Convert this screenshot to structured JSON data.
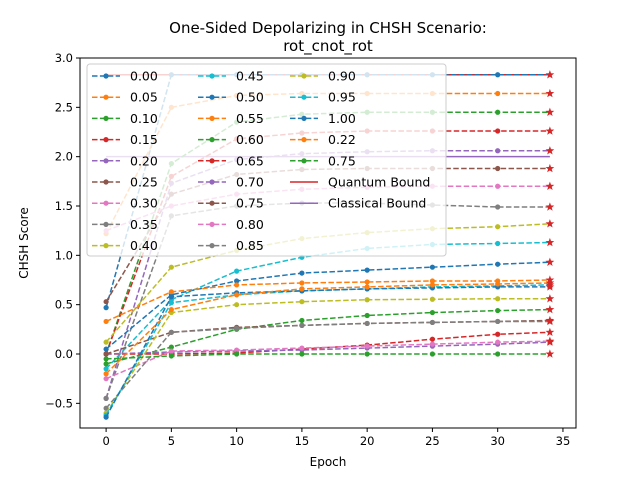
{
  "chart_data": {
    "type": "line",
    "title": "One-Sided Depolarizing in CHSH Scenario:",
    "subtitle": "rot_cnot_rot",
    "xlabel": "Epoch",
    "ylabel": "CHSH Score",
    "xlim": [
      -2,
      36
    ],
    "ylim": [
      -0.75,
      3.0
    ],
    "x_ticks": [
      0,
      5,
      10,
      15,
      20,
      25,
      30,
      35
    ],
    "y_ticks": [
      -0.5,
      0.0,
      0.5,
      1.0,
      1.5,
      2.0,
      2.5,
      3.0
    ],
    "x_tick_labels": [
      "0",
      "5",
      "10",
      "15",
      "20",
      "25",
      "30",
      "35"
    ],
    "y_tick_labels": [
      "−0.5",
      "0.0",
      "0.5",
      "1.0",
      "1.5",
      "2.0",
      "2.5",
      "3.0"
    ],
    "grid": false,
    "legend_placement": "top-left",
    "x": [
      0,
      5,
      10,
      15,
      20,
      25,
      30,
      34
    ],
    "series": [
      {
        "name": "0.00",
        "color": "#1f77b4",
        "values": [
          0.47,
          2.83,
          2.83,
          2.83,
          2.83,
          2.83,
          2.83,
          2.83
        ]
      },
      {
        "name": "0.05",
        "color": "#ff7f0e",
        "values": [
          1.22,
          2.5,
          2.62,
          2.64,
          2.64,
          2.64,
          2.64,
          2.64
        ]
      },
      {
        "name": "0.10",
        "color": "#2ca02c",
        "values": [
          0.0,
          1.93,
          2.35,
          2.43,
          2.45,
          2.45,
          2.45,
          2.45
        ]
      },
      {
        "name": "0.15",
        "color": "#d62728",
        "values": [
          0.0,
          1.8,
          2.18,
          2.24,
          2.26,
          2.26,
          2.26,
          2.26
        ]
      },
      {
        "name": "0.20",
        "color": "#9467bd",
        "values": [
          -0.45,
          1.73,
          1.97,
          2.03,
          2.05,
          2.06,
          2.06,
          2.06
        ]
      },
      {
        "name": "0.25",
        "color": "#8c564b",
        "values": [
          0.53,
          1.62,
          1.82,
          1.87,
          1.88,
          1.88,
          1.88,
          1.88
        ]
      },
      {
        "name": "0.30",
        "color": "#e377c2",
        "values": [
          1.25,
          1.5,
          1.62,
          1.67,
          1.69,
          1.7,
          1.7,
          1.7
        ]
      },
      {
        "name": "0.35",
        "color": "#7f7f7f",
        "values": [
          -0.45,
          1.4,
          1.5,
          1.53,
          1.53,
          1.51,
          1.49,
          1.49
        ]
      },
      {
        "name": "0.40",
        "color": "#bcbd22",
        "values": [
          0.12,
          0.88,
          1.05,
          1.17,
          1.23,
          1.27,
          1.29,
          1.32
        ]
      },
      {
        "name": "0.45",
        "color": "#17becf",
        "values": [
          -0.15,
          0.55,
          0.84,
          0.98,
          1.07,
          1.11,
          1.12,
          1.13
        ]
      },
      {
        "name": "0.50",
        "color": "#1f77b4",
        "values": [
          0.05,
          0.6,
          0.74,
          0.82,
          0.85,
          0.88,
          0.91,
          0.93
        ]
      },
      {
        "name": "0.55",
        "color": "#ff7f0e",
        "values": [
          0.33,
          0.63,
          0.7,
          0.72,
          0.73,
          0.74,
          0.74,
          0.75
        ]
      },
      {
        "name": "0.60",
        "color": "#2ca02c",
        "values": [
          -0.1,
          0.07,
          0.25,
          0.34,
          0.39,
          0.42,
          0.44,
          0.45
        ]
      },
      {
        "name": "0.65",
        "color": "#d62728",
        "values": [
          0.0,
          0.0,
          0.01,
          0.05,
          0.09,
          0.15,
          0.2,
          0.22
        ]
      },
      {
        "name": "0.70",
        "color": "#9467bd",
        "values": [
          0.0,
          0.02,
          0.03,
          0.04,
          0.06,
          0.08,
          0.1,
          0.12
        ]
      },
      {
        "name": "0.75",
        "color": "#8c564b",
        "values": [
          0.0,
          0.22,
          0.27,
          0.29,
          0.31,
          0.32,
          0.33,
          0.34
        ]
      },
      {
        "name": "0.80",
        "color": "#e377c2",
        "values": [
          -0.25,
          0.03,
          0.04,
          0.06,
          0.08,
          0.1,
          0.12,
          0.13
        ]
      },
      {
        "name": "0.85",
        "color": "#7f7f7f",
        "values": [
          -0.55,
          0.22,
          0.26,
          0.29,
          0.31,
          0.32,
          0.33,
          0.33
        ]
      },
      {
        "name": "0.90",
        "color": "#bcbd22",
        "values": [
          -0.6,
          0.42,
          0.5,
          0.53,
          0.55,
          0.555,
          0.56,
          0.56
        ]
      },
      {
        "name": "0.95",
        "color": "#17becf",
        "values": [
          -0.62,
          0.52,
          0.6,
          0.64,
          0.66,
          0.68,
          0.69,
          0.7
        ]
      },
      {
        "name": "1.00",
        "color": "#1f77b4",
        "values": [
          -0.64,
          0.58,
          0.62,
          0.64,
          0.66,
          0.67,
          0.68,
          0.68
        ]
      },
      {
        "name": "0.22",
        "color": "#ff7f0e",
        "values": [
          -0.2,
          0.45,
          0.6,
          0.66,
          0.68,
          0.7,
          0.71,
          0.72
        ]
      },
      {
        "name": "0.75",
        "color": "#2ca02c",
        "values": [
          -0.05,
          -0.02,
          0.0,
          0.0,
          0.0,
          0.0,
          0.0,
          0.0
        ]
      }
    ],
    "bounds": [
      {
        "name": "Quantum Bound",
        "color": "#d62728",
        "value": 2.83
      },
      {
        "name": "Classical Bound",
        "color": "#9467bd",
        "value": 2.0
      }
    ]
  }
}
